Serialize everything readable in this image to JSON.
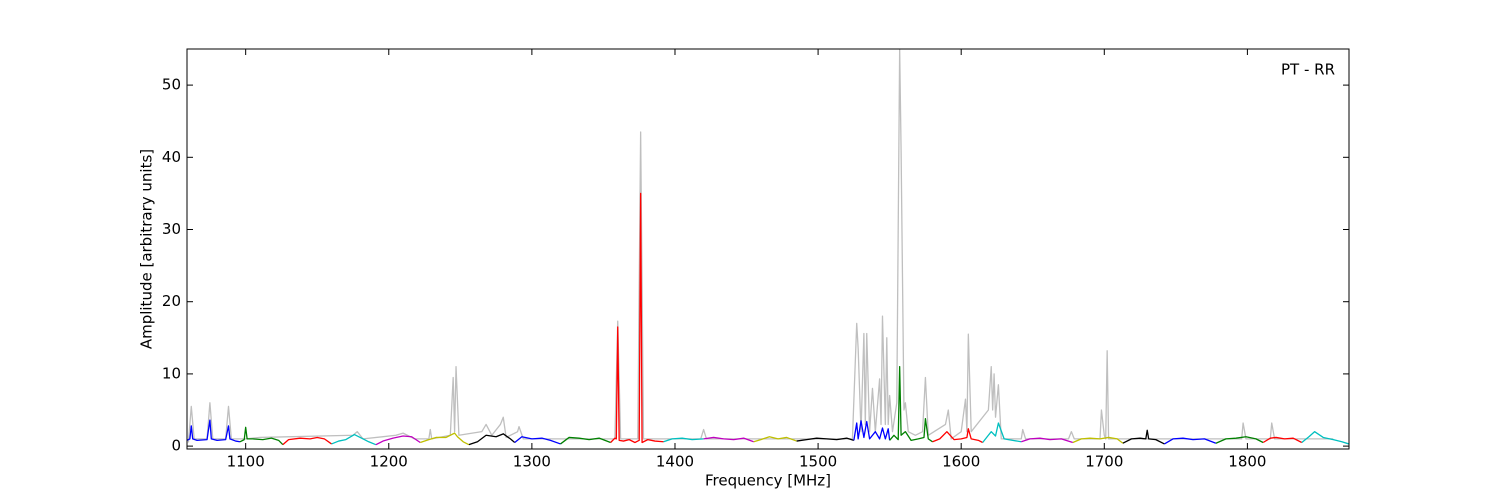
{
  "chart_data": {
    "type": "line",
    "x_label": "Frequency [MHz]",
    "y_label": "Amplitude [arbitrary units]",
    "annotation": "PT - RR",
    "xlim": [
      1059,
      1871
    ],
    "ylim": [
      -0.4,
      55
    ],
    "xticks": [
      1100,
      1200,
      1300,
      1400,
      1500,
      1600,
      1700,
      1800
    ],
    "yticks": [
      0,
      10,
      20,
      30,
      40,
      50
    ],
    "series": [
      {
        "color": "#bfbfbf",
        "x": [
          1060,
          1062,
          1064,
          1073,
          1075,
          1077,
          1086,
          1088,
          1090,
          1100,
          1110,
          1175,
          1178,
          1182,
          1205,
          1210,
          1218,
          1228,
          1229,
          1230,
          1243,
          1245,
          1246,
          1247,
          1249,
          1265,
          1268,
          1272,
          1278,
          1280,
          1282,
          1290,
          1291,
          1294,
          1358,
          1360,
          1362,
          1374,
          1376,
          1378,
          1418,
          1420,
          1422,
          1524,
          1527,
          1528,
          1530,
          1532,
          1533,
          1534,
          1536,
          1538,
          1540,
          1543,
          1544,
          1545,
          1547,
          1548,
          1549,
          1550,
          1552,
          1555,
          1557,
          1558,
          1560,
          1561,
          1563,
          1568,
          1573,
          1575,
          1577,
          1589,
          1591,
          1593,
          1600,
          1603,
          1604,
          1605,
          1607,
          1619,
          1621,
          1622,
          1623,
          1624,
          1626,
          1628,
          1642,
          1643,
          1645,
          1675,
          1677,
          1679,
          1697,
          1698,
          1700,
          1701,
          1702,
          1703,
          1796,
          1797,
          1799,
          1816,
          1817,
          1819,
          1860
        ],
        "values": [
          0.5,
          5.5,
          1,
          1,
          6,
          1,
          1,
          5.5,
          1,
          1,
          1.2,
          1.5,
          2,
          1,
          1.5,
          1.8,
          1,
          1,
          2.3,
          1,
          1.5,
          9.5,
          2,
          11,
          1.5,
          2,
          3,
          1.5,
          3,
          4,
          1.2,
          2,
          2.7,
          1,
          1,
          17.3,
          1,
          1,
          43.5,
          1,
          1,
          2.3,
          1,
          1,
          17,
          13.5,
          2,
          15.6,
          3,
          15.6,
          2,
          8,
          2,
          9.3,
          3,
          18,
          3,
          15,
          3,
          7,
          2,
          6,
          55,
          41,
          5,
          6,
          2,
          1.5,
          2,
          9.5,
          1.5,
          3,
          5,
          1,
          2,
          6.5,
          2,
          15.5,
          2,
          5,
          11,
          5,
          10,
          4,
          8.5,
          1,
          1,
          2.3,
          1,
          1,
          2,
          1,
          1,
          5,
          1.5,
          1,
          13.2,
          1,
          1,
          3.2,
          1,
          1,
          3.2,
          1,
          1
        ]
      },
      {
        "color": "#0000ff",
        "x": [
          1059,
          1061,
          1062,
          1063,
          1066,
          1073,
          1075,
          1076,
          1080,
          1086,
          1088,
          1089,
          1093,
          1096
        ],
        "values": [
          0.8,
          1,
          2.8,
          1,
          0.8,
          0.9,
          3.6,
          1,
          0.8,
          0.9,
          2.8,
          1,
          0.7,
          0.6
        ]
      },
      {
        "color": "#008000",
        "x": [
          1096,
          1099,
          1100,
          1101,
          1105,
          1112,
          1118,
          1123,
          1126
        ],
        "values": [
          0.6,
          0.9,
          2.6,
          1,
          1,
          0.9,
          1.1,
          0.8,
          0.2
        ]
      },
      {
        "color": "#ff0000",
        "x": [
          1126,
          1130,
          1138,
          1145,
          1150,
          1155,
          1160
        ],
        "values": [
          0.2,
          0.9,
          1.1,
          1,
          1.2,
          1,
          0.3
        ]
      },
      {
        "color": "#00bfbf",
        "x": [
          1160,
          1165,
          1170,
          1176,
          1180,
          1186,
          1191
        ],
        "values": [
          0.3,
          0.7,
          0.9,
          1.6,
          1.2,
          0.6,
          0.2
        ]
      },
      {
        "color": "#bf00bf",
        "x": [
          1191,
          1196,
          1203,
          1210,
          1216,
          1222
        ],
        "values": [
          0.2,
          0.7,
          1.1,
          1.4,
          1.3,
          0.5
        ]
      },
      {
        "color": "#bfbf00",
        "x": [
          1222,
          1228,
          1233,
          1240,
          1246,
          1248,
          1252,
          1256
        ],
        "values": [
          0.5,
          0.9,
          1.2,
          1.2,
          1.8,
          1.3,
          0.6,
          0.2
        ]
      },
      {
        "color": "#000000",
        "x": [
          1256,
          1262,
          1268,
          1275,
          1280,
          1285,
          1288
        ],
        "values": [
          0.2,
          0.6,
          1.5,
          1.3,
          1.7,
          1,
          0.5
        ]
      },
      {
        "color": "#0000ff",
        "x": [
          1288,
          1293,
          1300,
          1307,
          1313,
          1320
        ],
        "values": [
          0.5,
          1.3,
          1,
          1.1,
          0.8,
          0.3
        ]
      },
      {
        "color": "#008000",
        "x": [
          1320,
          1326,
          1333,
          1340,
          1347,
          1355
        ],
        "values": [
          0.3,
          1.2,
          1.1,
          0.9,
          1.1,
          0.5
        ]
      },
      {
        "color": "#ff0000",
        "x": [
          1355,
          1358,
          1359,
          1360,
          1361,
          1364,
          1368,
          1372,
          1375,
          1376,
          1377,
          1381,
          1386,
          1392
        ],
        "values": [
          0.5,
          1.1,
          1,
          16.5,
          0.8,
          0.7,
          0.9,
          0.5,
          0.8,
          35,
          0.5,
          0.9,
          0.7,
          0.6
        ]
      },
      {
        "color": "#00bfbf",
        "x": [
          1392,
          1398,
          1405,
          1412,
          1420
        ],
        "values": [
          0.6,
          1,
          1.1,
          0.9,
          1
        ]
      },
      {
        "color": "#bf00bf",
        "x": [
          1420,
          1427,
          1434,
          1441,
          1448,
          1455
        ],
        "values": [
          1,
          1.2,
          1,
          0.9,
          1.1,
          0.6
        ]
      },
      {
        "color": "#bfbf00",
        "x": [
          1455,
          1460,
          1466,
          1472,
          1478,
          1485
        ],
        "values": [
          0.6,
          0.9,
          1.3,
          1,
          1.2,
          0.7
        ]
      },
      {
        "color": "#000000",
        "x": [
          1485,
          1492,
          1499,
          1506,
          1513,
          1520,
          1525
        ],
        "values": [
          0.7,
          0.9,
          1.1,
          1,
          0.9,
          1.1,
          0.8
        ]
      },
      {
        "color": "#0000ff",
        "x": [
          1525,
          1527,
          1528,
          1530,
          1532,
          1534,
          1536,
          1540,
          1543,
          1545,
          1547,
          1549,
          1550
        ],
        "values": [
          0.8,
          3.2,
          1,
          3.5,
          1.2,
          3.4,
          1,
          2,
          1,
          2.5,
          1,
          2.4,
          0.8
        ]
      },
      {
        "color": "#008000",
        "x": [
          1550,
          1553,
          1556,
          1557,
          1558,
          1561,
          1565,
          1570,
          1574,
          1575,
          1577,
          1580
        ],
        "values": [
          0.8,
          1.5,
          0.9,
          11,
          1.5,
          2,
          0.8,
          1,
          1.2,
          3.8,
          1,
          0.6
        ]
      },
      {
        "color": "#ff0000",
        "x": [
          1580,
          1585,
          1590,
          1595,
          1600,
          1604,
          1605,
          1607,
          1612,
          1615
        ],
        "values": [
          0.6,
          1,
          2,
          0.9,
          1,
          1.2,
          2.4,
          1,
          0.8,
          0.5
        ]
      },
      {
        "color": "#00bfbf",
        "x": [
          1615,
          1619,
          1621,
          1624,
          1626,
          1630,
          1636,
          1642
        ],
        "values": [
          0.5,
          1.5,
          2,
          1.4,
          3.2,
          1,
          0.8,
          0.6
        ]
      },
      {
        "color": "#bf00bf",
        "x": [
          1642,
          1648,
          1655,
          1662,
          1670,
          1678
        ],
        "values": [
          0.6,
          1,
          1.1,
          0.9,
          1,
          0.5
        ]
      },
      {
        "color": "#bfbf00",
        "x": [
          1678,
          1684,
          1690,
          1697,
          1703,
          1709,
          1713
        ],
        "values": [
          0.5,
          1,
          1.1,
          1,
          1.2,
          1,
          0.4
        ]
      },
      {
        "color": "#000000",
        "x": [
          1713,
          1719,
          1725,
          1729,
          1730,
          1731,
          1736,
          1742
        ],
        "values": [
          0.4,
          1,
          1.1,
          1,
          2.2,
          1,
          0.9,
          0.3
        ]
      },
      {
        "color": "#0000ff",
        "x": [
          1742,
          1748,
          1755,
          1762,
          1770,
          1778
        ],
        "values": [
          0.3,
          1,
          1.1,
          0.9,
          1,
          0.4
        ]
      },
      {
        "color": "#008000",
        "x": [
          1778,
          1785,
          1792,
          1799,
          1806,
          1811
        ],
        "values": [
          0.4,
          1,
          1.1,
          1.3,
          1,
          0.5
        ]
      },
      {
        "color": "#ff0000",
        "x": [
          1811,
          1816,
          1820,
          1826,
          1832,
          1838
        ],
        "values": [
          0.5,
          1.1,
          1.2,
          1,
          1.1,
          0.5
        ]
      },
      {
        "color": "#00bfbf",
        "x": [
          1838,
          1843,
          1847,
          1853,
          1860,
          1866,
          1871
        ],
        "values": [
          0.5,
          1.3,
          2,
          1.2,
          0.9,
          0.6,
          0.3
        ]
      }
    ]
  }
}
